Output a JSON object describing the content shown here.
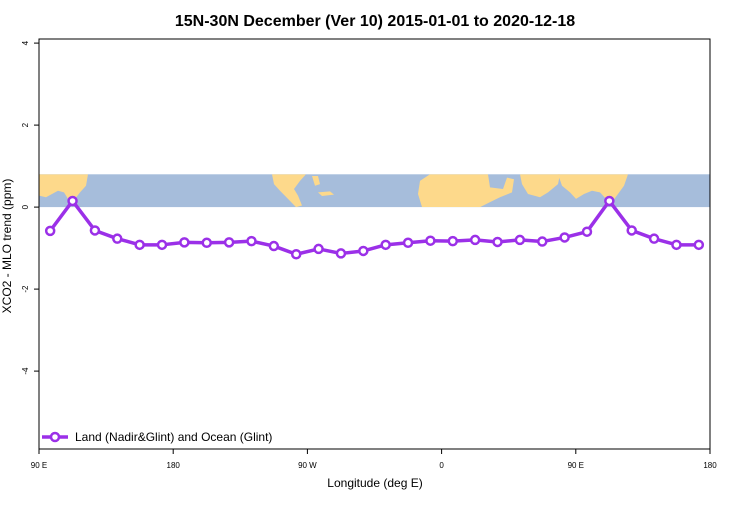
{
  "chart_data": {
    "type": "line",
    "title": "15N-30N December (Ver 10)   2015-01-01 to 2020-12-18",
    "xlabel": "Longitude (deg E)",
    "ylabel": "XCO2 - MLO trend (ppm)",
    "xlim": [
      90,
      390
    ],
    "ylim": [
      -5.9,
      4.1
    ],
    "x_ticks": [
      {
        "value": 90,
        "label": "90 E"
      },
      {
        "value": 150,
        "label": "180"
      },
      {
        "value": 210,
        "label": "90 W"
      },
      {
        "value": 270,
        "label": "0"
      },
      {
        "value": 330,
        "label": "90 E"
      },
      {
        "value": 390,
        "label": "180"
      }
    ],
    "y_ticks": [
      {
        "value": 4,
        "label": "4"
      },
      {
        "value": 2,
        "label": "2"
      },
      {
        "value": 0,
        "label": "0"
      },
      {
        "value": -2,
        "label": "-2"
      },
      {
        "value": -4,
        "label": "-4"
      }
    ],
    "grid": false,
    "background_map_band": {
      "lat_min": 15,
      "lat_max": 30,
      "y_top": 0.8,
      "y_bottom": 0.0,
      "ocean_color": "#a6bddb",
      "land_color": "#fdd98b"
    },
    "legend": {
      "position": "bottom-left",
      "entries": [
        "Land (Nadir&Glint) and Ocean (Glint)"
      ]
    },
    "series": [
      {
        "name": "Land (Nadir&Glint) and Ocean (Glint)",
        "color": "#9b30e8",
        "x": [
          95,
          105,
          115,
          125,
          135,
          145,
          155,
          165,
          175,
          185,
          195,
          205,
          215,
          225,
          235,
          245,
          255,
          265,
          275,
          285,
          295,
          305,
          315,
          325,
          335,
          345,
          355,
          365,
          375,
          385
        ],
        "y": [
          -0.58,
          0.15,
          -0.57,
          -0.77,
          -0.92,
          -0.92,
          -0.86,
          -0.87,
          -0.86,
          -0.83,
          -0.95,
          -1.15,
          -1.02,
          -1.13,
          -1.07,
          -0.92,
          -0.87,
          -0.82,
          -0.83,
          -0.8,
          -0.85,
          -0.8,
          -0.84,
          -0.74,
          -0.6,
          0.15,
          -0.57,
          -0.77,
          -0.92,
          -0.92
        ]
      }
    ]
  }
}
